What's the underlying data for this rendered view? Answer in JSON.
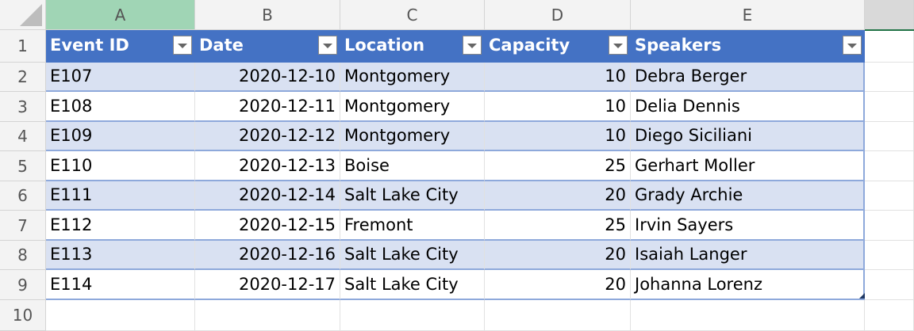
{
  "columns": [
    "A",
    "B",
    "C",
    "D",
    "E"
  ],
  "rows": [
    "1",
    "2",
    "3",
    "4",
    "5",
    "6",
    "7",
    "8",
    "9",
    "10"
  ],
  "table": {
    "headers": [
      "Event ID",
      "Date",
      "Location",
      "Capacity",
      "Speakers"
    ],
    "data": [
      [
        "E107",
        "2020-12-10",
        "Montgomery",
        "10",
        "Debra Berger"
      ],
      [
        "E108",
        "2020-12-11",
        "Montgomery",
        "10",
        "Delia Dennis"
      ],
      [
        "E109",
        "2020-12-12",
        "Montgomery",
        "10",
        "Diego Siciliani"
      ],
      [
        "E110",
        "2020-12-13",
        "Boise",
        "25",
        "Gerhart Moller"
      ],
      [
        "E111",
        "2020-12-14",
        "Salt Lake City",
        "20",
        "Grady Archie"
      ],
      [
        "E112",
        "2020-12-15",
        "Fremont",
        "25",
        "Irvin Sayers"
      ],
      [
        "E113",
        "2020-12-16",
        "Salt Lake City",
        "20",
        "Isaiah Langer"
      ],
      [
        "E114",
        "2020-12-17",
        "Salt Lake City",
        "20",
        "Johanna Lorenz"
      ]
    ]
  },
  "colors": {
    "header": "#4472c4",
    "band": "#d9e1f2",
    "selected_col": "#a0d5b5"
  }
}
